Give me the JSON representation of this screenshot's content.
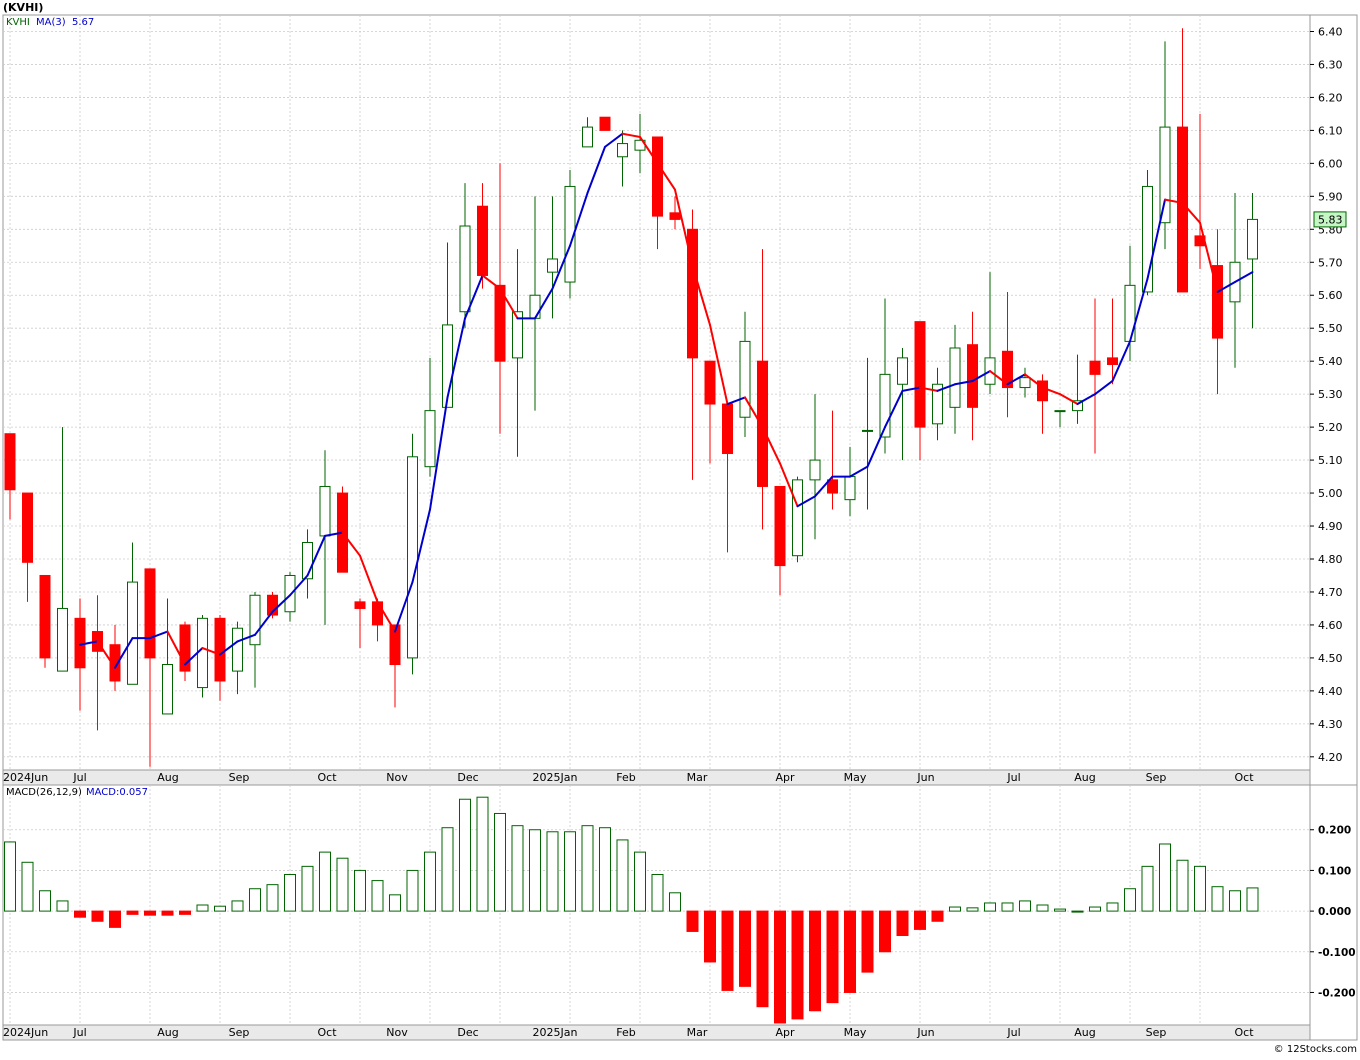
{
  "title": "(KVHI)",
  "watermark": "© 12Stocks.com",
  "colors": {
    "up_candle": "#006400",
    "down_candle": "#ff0000",
    "ma_rising": "#0000cc",
    "ma_falling": "#ff0000",
    "macd_pos": "#006400",
    "macd_neg": "#ff0000",
    "grid": "#cccccc",
    "axis_band": "#eaeaea",
    "last_price_box": "#c6f5c6"
  },
  "price_legend": {
    "symbol": "KVHI",
    "ma_label": "MA(3)",
    "ma_value": "5.67"
  },
  "macd_legend": {
    "label": "MACD(26,12,9)",
    "value_label": "MACD:0.057"
  },
  "last_price_label": "5.83",
  "chart_data": [
    {
      "type": "candlestick",
      "panel": "price",
      "y_range": [
        4.16,
        6.45
      ],
      "y_ticks": [
        "6.40",
        "6.30",
        "6.20",
        "6.10",
        "6.00",
        "5.90",
        "5.80",
        "5.70",
        "5.60",
        "5.50",
        "5.40",
        "5.30",
        "5.20",
        "5.10",
        "5.00",
        "4.90",
        "4.80",
        "4.70",
        "4.60",
        "4.50",
        "4.40",
        "4.30",
        "4.20"
      ],
      "x_labels": [
        "2024Jun",
        "Jul",
        "Aug",
        "Sep",
        "Oct",
        "Nov",
        "Dec",
        "2025Jan",
        "Feb",
        "Mar",
        "Apr",
        "May",
        "Jun",
        "Jul",
        "Aug",
        "Sep",
        "Oct"
      ],
      "grid": true,
      "candles": [
        {
          "o": 5.18,
          "h": 5.18,
          "l": 4.92,
          "c": 5.01
        },
        {
          "o": 5.0,
          "h": 5.0,
          "l": 4.67,
          "c": 4.79
        },
        {
          "o": 4.75,
          "h": 4.75,
          "l": 4.47,
          "c": 4.5
        },
        {
          "o": 4.46,
          "h": 5.2,
          "l": 4.46,
          "c": 4.65
        },
        {
          "o": 4.62,
          "h": 4.68,
          "l": 4.34,
          "c": 4.47
        },
        {
          "o": 4.58,
          "h": 4.69,
          "l": 4.28,
          "c": 4.52
        },
        {
          "o": 4.54,
          "h": 4.6,
          "l": 4.4,
          "c": 4.43
        },
        {
          "o": 4.42,
          "h": 4.85,
          "l": 4.42,
          "c": 4.73
        },
        {
          "o": 4.77,
          "h": 4.77,
          "l": 4.17,
          "c": 4.5
        },
        {
          "o": 4.33,
          "h": 4.68,
          "l": 4.33,
          "c": 4.48
        },
        {
          "o": 4.6,
          "h": 4.61,
          "l": 4.43,
          "c": 4.46
        },
        {
          "o": 4.41,
          "h": 4.63,
          "l": 4.38,
          "c": 4.62
        },
        {
          "o": 4.62,
          "h": 4.63,
          "l": 4.37,
          "c": 4.43
        },
        {
          "o": 4.46,
          "h": 4.61,
          "l": 4.39,
          "c": 4.59
        },
        {
          "o": 4.54,
          "h": 4.7,
          "l": 4.41,
          "c": 4.69
        },
        {
          "o": 4.69,
          "h": 4.7,
          "l": 4.62,
          "c": 4.63
        },
        {
          "o": 4.64,
          "h": 4.76,
          "l": 4.61,
          "c": 4.75
        },
        {
          "o": 4.74,
          "h": 4.89,
          "l": 4.68,
          "c": 4.85
        },
        {
          "o": 4.87,
          "h": 5.13,
          "l": 4.6,
          "c": 5.02
        },
        {
          "o": 5.0,
          "h": 5.02,
          "l": 4.76,
          "c": 4.76
        },
        {
          "o": 4.67,
          "h": 4.68,
          "l": 4.53,
          "c": 4.65
        },
        {
          "o": 4.67,
          "h": 4.68,
          "l": 4.55,
          "c": 4.6
        },
        {
          "o": 4.6,
          "h": 4.6,
          "l": 4.35,
          "c": 4.48
        },
        {
          "o": 4.5,
          "h": 5.18,
          "l": 4.45,
          "c": 5.11
        },
        {
          "o": 5.08,
          "h": 5.41,
          "l": 5.05,
          "c": 5.25
        },
        {
          "o": 5.26,
          "h": 5.76,
          "l": 5.26,
          "c": 5.51
        },
        {
          "o": 5.55,
          "h": 5.94,
          "l": 5.5,
          "c": 5.81
        },
        {
          "o": 5.87,
          "h": 5.94,
          "l": 5.62,
          "c": 5.66
        },
        {
          "o": 5.63,
          "h": 6.0,
          "l": 5.18,
          "c": 5.4
        },
        {
          "o": 5.41,
          "h": 5.74,
          "l": 5.11,
          "c": 5.55
        },
        {
          "o": 5.53,
          "h": 5.9,
          "l": 5.25,
          "c": 5.6
        },
        {
          "o": 5.67,
          "h": 5.9,
          "l": 5.53,
          "c": 5.71
        },
        {
          "o": 5.64,
          "h": 5.98,
          "l": 5.59,
          "c": 5.93
        },
        {
          "o": 6.05,
          "h": 6.14,
          "l": 6.05,
          "c": 6.11
        },
        {
          "o": 6.14,
          "h": 6.14,
          "l": 6.1,
          "c": 6.1
        },
        {
          "o": 6.02,
          "h": 6.1,
          "l": 5.93,
          "c": 6.06
        },
        {
          "o": 6.04,
          "h": 6.15,
          "l": 5.97,
          "c": 6.07
        },
        {
          "o": 6.08,
          "h": 6.08,
          "l": 5.74,
          "c": 5.84
        },
        {
          "o": 5.85,
          "h": 5.9,
          "l": 5.8,
          "c": 5.83
        },
        {
          "o": 5.8,
          "h": 5.86,
          "l": 5.04,
          "c": 5.41
        },
        {
          "o": 5.4,
          "h": 5.4,
          "l": 5.09,
          "c": 5.27
        },
        {
          "o": 5.27,
          "h": 5.27,
          "l": 4.82,
          "c": 5.12
        },
        {
          "o": 5.23,
          "h": 5.55,
          "l": 5.17,
          "c": 5.46
        },
        {
          "o": 5.4,
          "h": 5.74,
          "l": 4.89,
          "c": 5.02
        },
        {
          "o": 5.02,
          "h": 5.02,
          "l": 4.69,
          "c": 4.78
        },
        {
          "o": 4.81,
          "h": 5.05,
          "l": 4.79,
          "c": 5.04
        },
        {
          "o": 5.04,
          "h": 5.3,
          "l": 4.86,
          "c": 5.1
        },
        {
          "o": 5.04,
          "h": 5.25,
          "l": 4.95,
          "c": 5.0
        },
        {
          "o": 4.98,
          "h": 5.14,
          "l": 4.93,
          "c": 5.05
        },
        {
          "o": 5.19,
          "h": 5.41,
          "l": 4.95,
          "c": 5.19
        },
        {
          "o": 5.17,
          "h": 5.59,
          "l": 5.12,
          "c": 5.36
        },
        {
          "o": 5.33,
          "h": 5.44,
          "l": 5.1,
          "c": 5.41
        },
        {
          "o": 5.52,
          "h": 5.52,
          "l": 5.1,
          "c": 5.2
        },
        {
          "o": 5.21,
          "h": 5.38,
          "l": 5.16,
          "c": 5.33
        },
        {
          "o": 5.26,
          "h": 5.51,
          "l": 5.18,
          "c": 5.44
        },
        {
          "o": 5.45,
          "h": 5.55,
          "l": 5.16,
          "c": 5.26
        },
        {
          "o": 5.33,
          "h": 5.67,
          "l": 5.3,
          "c": 5.41
        },
        {
          "o": 5.43,
          "h": 5.61,
          "l": 5.23,
          "c": 5.32
        },
        {
          "o": 5.32,
          "h": 5.38,
          "l": 5.29,
          "c": 5.35
        },
        {
          "o": 5.34,
          "h": 5.36,
          "l": 5.18,
          "c": 5.28
        },
        {
          "o": 5.25,
          "h": 5.25,
          "l": 5.2,
          "c": 5.25
        },
        {
          "o": 5.25,
          "h": 5.42,
          "l": 5.21,
          "c": 5.28
        },
        {
          "o": 5.4,
          "h": 5.59,
          "l": 5.12,
          "c": 5.36
        },
        {
          "o": 5.41,
          "h": 5.59,
          "l": 5.33,
          "c": 5.39
        },
        {
          "o": 5.46,
          "h": 5.75,
          "l": 5.4,
          "c": 5.63
        },
        {
          "o": 5.61,
          "h": 5.98,
          "l": 5.6,
          "c": 5.93
        },
        {
          "o": 5.82,
          "h": 6.37,
          "l": 5.74,
          "c": 6.11
        },
        {
          "o": 6.11,
          "h": 6.41,
          "l": 5.61,
          "c": 5.61
        },
        {
          "o": 5.78,
          "h": 6.15,
          "l": 5.68,
          "c": 5.75
        },
        {
          "o": 5.69,
          "h": 5.8,
          "l": 5.3,
          "c": 5.47
        },
        {
          "o": 5.58,
          "h": 5.91,
          "l": 5.38,
          "c": 5.7
        },
        {
          "o": 5.71,
          "h": 5.91,
          "l": 5.5,
          "c": 5.83
        }
      ],
      "moving_average": {
        "name": "MA(3)",
        "values": [
          null,
          null,
          null,
          null,
          4.54,
          4.55,
          4.47,
          4.56,
          4.56,
          4.58,
          4.48,
          4.53,
          4.51,
          4.55,
          4.57,
          4.64,
          4.69,
          4.75,
          4.87,
          4.88,
          4.81,
          4.67,
          4.58,
          4.73,
          4.95,
          5.29,
          5.53,
          5.66,
          5.62,
          5.53,
          5.53,
          5.62,
          5.75,
          5.91,
          6.05,
          6.09,
          6.08,
          6.0,
          5.92,
          5.69,
          5.51,
          5.27,
          5.29,
          5.2,
          5.09,
          4.96,
          4.99,
          5.05,
          5.05,
          5.08,
          5.2,
          5.31,
          5.32,
          5.31,
          5.33,
          5.34,
          5.37,
          5.33,
          5.36,
          5.32,
          5.3,
          5.27,
          5.3,
          5.34,
          5.46,
          5.65,
          5.89,
          5.88,
          5.82,
          5.61,
          5.64,
          5.67
        ]
      }
    },
    {
      "type": "bar",
      "panel": "macd",
      "name": "MACD(26,12,9)",
      "y_range": [
        -0.28,
        0.31
      ],
      "y_ticks": [
        "0.200",
        "0.100",
        "0.000",
        "-0.100",
        "-0.200"
      ],
      "x_labels": [
        "2024Jun",
        "Jul",
        "Aug",
        "Sep",
        "Oct",
        "Nov",
        "Dec",
        "2025Jan",
        "Feb",
        "Mar",
        "Apr",
        "May",
        "Jun",
        "Jul",
        "Aug",
        "Sep",
        "Oct"
      ],
      "values": [
        0.17,
        0.12,
        0.05,
        0.025,
        -0.015,
        -0.025,
        -0.04,
        -0.008,
        -0.01,
        -0.01,
        -0.008,
        0.015,
        0.012,
        0.025,
        0.055,
        0.065,
        0.09,
        0.11,
        0.145,
        0.13,
        0.1,
        0.075,
        0.04,
        0.1,
        0.145,
        0.205,
        0.275,
        0.28,
        0.24,
        0.21,
        0.2,
        0.195,
        0.195,
        0.21,
        0.205,
        0.175,
        0.145,
        0.09,
        0.045,
        -0.05,
        -0.125,
        -0.195,
        -0.185,
        -0.235,
        -0.275,
        -0.265,
        -0.245,
        -0.225,
        -0.2,
        -0.15,
        -0.1,
        -0.06,
        -0.045,
        -0.025,
        0.01,
        0.008,
        0.02,
        0.02,
        0.025,
        0.015,
        0.005,
        0.0,
        0.01,
        0.02,
        0.055,
        0.11,
        0.165,
        0.125,
        0.11,
        0.06,
        0.05,
        0.057
      ]
    }
  ]
}
